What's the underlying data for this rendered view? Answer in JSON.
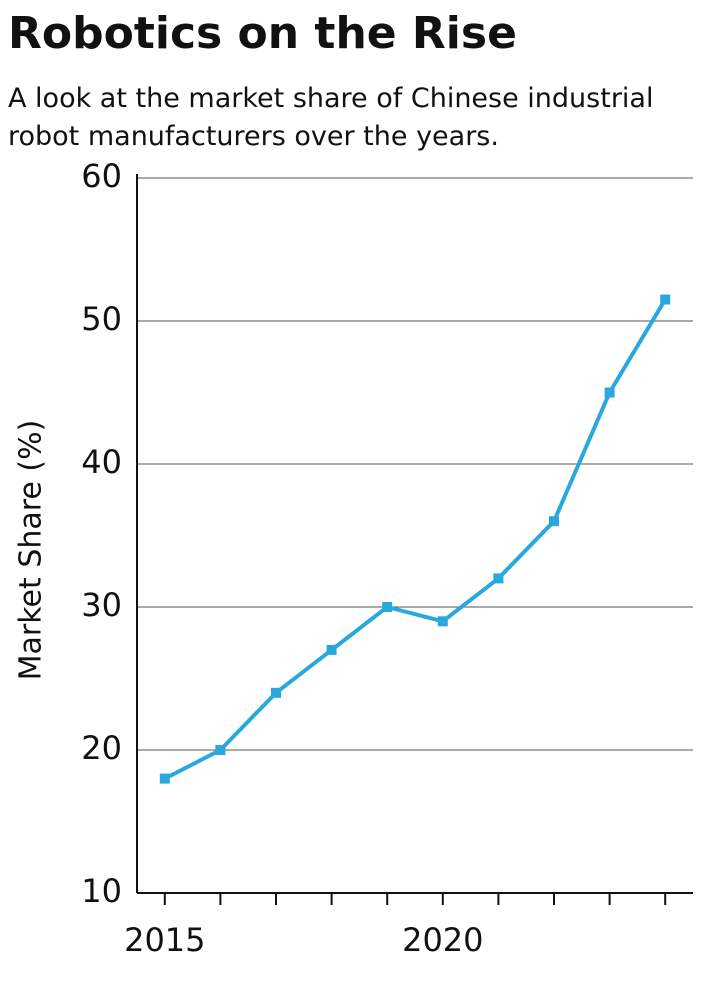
{
  "chart_data": {
    "type": "line",
    "title": "Robotics on the Rise",
    "subtitle": "A look at the market share of Chinese industrial robot manufacturers over the years.",
    "y_label": "Market Share (%)",
    "x": [
      2015,
      2016,
      2017,
      2018,
      2019,
      2020,
      2021,
      2022,
      2023,
      2024
    ],
    "series": [
      {
        "name": "Market Share",
        "color": "#29a8e0",
        "values": [
          18,
          20,
          24,
          27,
          30,
          29,
          32,
          36,
          45,
          51.5
        ]
      }
    ],
    "xlim": [
      2014.5,
      2024.5
    ],
    "xticks": [
      2015,
      2020
    ],
    "x_minor_ticks": [
      2015,
      2016,
      2017,
      2018,
      2019,
      2020,
      2021,
      2022,
      2023,
      2024
    ],
    "ylim": [
      10,
      60
    ],
    "yticks": [
      10,
      20,
      30,
      40,
      50,
      60
    ],
    "grid": true
  }
}
